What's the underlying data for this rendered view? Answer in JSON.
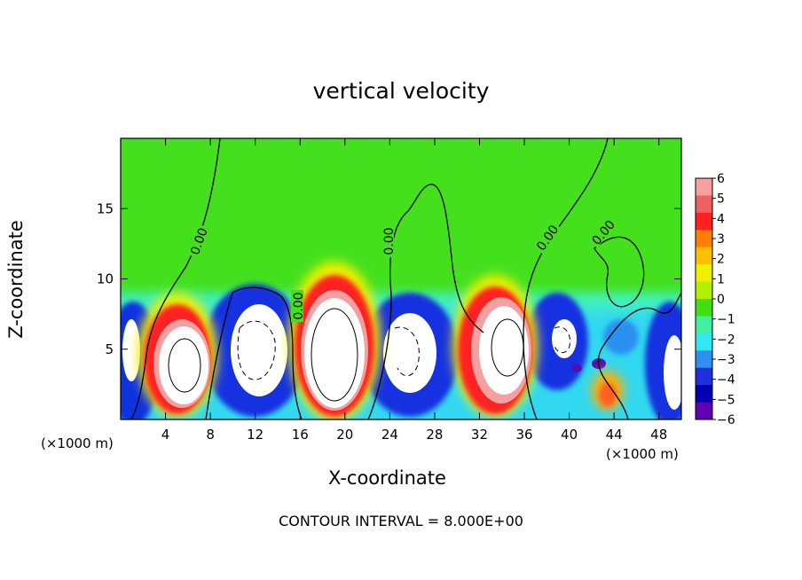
{
  "title": "vertical velocity",
  "footer": "CONTOUR INTERVAL = 8.000E+00",
  "chart_data": {
    "type": "heatmap",
    "title": "vertical velocity",
    "xlabel": "X-coordinate",
    "ylabel": "Z-coordinate",
    "x_unit_label": "(×1000 m)",
    "xlim": [
      0,
      50
    ],
    "ylim": [
      0,
      20
    ],
    "x_ticks": [
      4,
      8,
      12,
      16,
      20,
      24,
      28,
      32,
      36,
      40,
      44,
      48
    ],
    "y_ticks": [
      5,
      10,
      15
    ],
    "colorbar": {
      "range": [
        -6,
        6
      ],
      "ticks": [
        6,
        5,
        4,
        3,
        2,
        1,
        0,
        -1,
        -2,
        -3,
        -4,
        -5,
        -6
      ],
      "colors": [
        "#f8a0a0",
        "#f06060",
        "#ff2020",
        "#ff8000",
        "#ffc000",
        "#f0f000",
        "#b0f000",
        "#40e010",
        "#40f0a0",
        "#30e8f0",
        "#3090f0",
        "#2030e0",
        "#0000b0",
        "#6000b0"
      ]
    },
    "updraft_columns_x": [
      6,
      19,
      33.5
    ],
    "downdraft_columns_x": [
      12.5,
      26,
      40,
      48.5
    ],
    "contour_labels": [
      "0.00",
      "0.00",
      "0.00",
      "0.00",
      "0.00"
    ]
  }
}
